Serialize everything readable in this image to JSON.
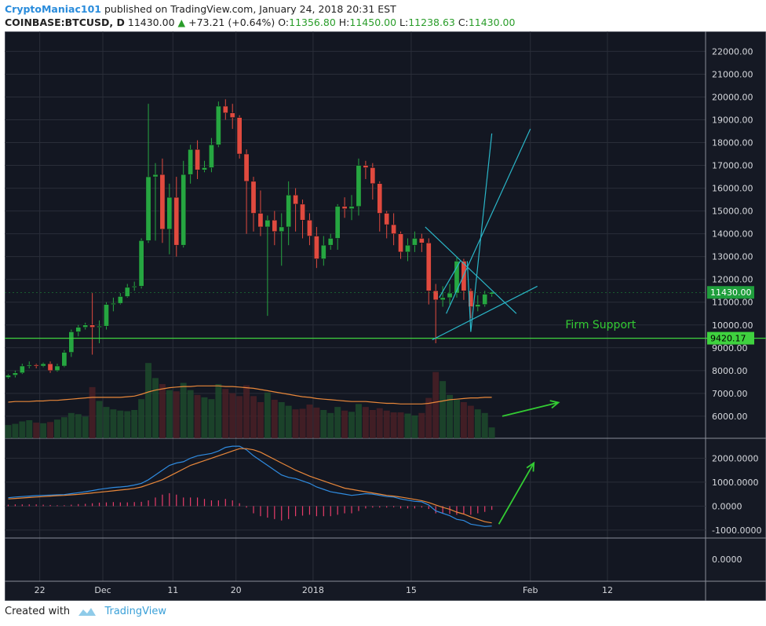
{
  "header": {
    "author": "CryptoManiac101",
    "published_text": " published on TradingView.com, January 24, 2018 20:31 EST",
    "symbol": "COINBASE:BTCUSD, D",
    "last": "11430.00",
    "change": "+73.21 (+0.64%)",
    "open_label": "O:",
    "open": "11356.80",
    "high_label": "H:",
    "high": "11450.00",
    "low_label": "L:",
    "low": "11238.63",
    "close_label": "C:",
    "close": "11430.00"
  },
  "footer": {
    "created_with": "Created with",
    "brand": "TradingView"
  },
  "colors": {
    "background": "#131722",
    "grid": "#2a2e39",
    "up": "#26a641",
    "down": "#e04a3f",
    "support_line": "#3fd23f",
    "annotation": "#33cc33",
    "trendline": "#2ab6c8",
    "volume_ma": "#e8873a",
    "macd": "#2f8be0",
    "signal": "#e8873a",
    "histogram": "#e83c6a"
  },
  "chart_data": {
    "type": "candlestick",
    "x_tick_labels": [
      "22",
      "Dec",
      "11",
      "20",
      "2018",
      "15",
      "Feb",
      "12"
    ],
    "y_ticks": [
      "22000.00",
      "21000.00",
      "20000.00",
      "19000.00",
      "18000.00",
      "17000.00",
      "16000.00",
      "15000.00",
      "14000.00",
      "13000.00",
      "12000.00",
      "11000.00",
      "10000.00",
      "9000.00",
      "8000.00",
      "7000.00",
      "6000.00"
    ],
    "ylim": [
      5100,
      22600
    ],
    "last_price_label": "11430.00",
    "support_price_label": "9420.17",
    "support_value": 9420.17,
    "annotation_text": "Firm Support",
    "candles": [
      {
        "o": 7700,
        "c": 7800,
        "h": 7850,
        "l": 7650
      },
      {
        "o": 7800,
        "c": 7900,
        "h": 8000,
        "l": 7700
      },
      {
        "o": 7900,
        "c": 8200,
        "h": 8300,
        "l": 7850
      },
      {
        "o": 8200,
        "c": 8250,
        "h": 8400,
        "l": 8100
      },
      {
        "o": 8250,
        "c": 8200,
        "h": 8300,
        "l": 8100
      },
      {
        "o": 8200,
        "c": 8300,
        "h": 8350,
        "l": 8150
      },
      {
        "o": 8300,
        "c": 8000,
        "h": 8400,
        "l": 7900
      },
      {
        "o": 8000,
        "c": 8200,
        "h": 8300,
        "l": 7950
      },
      {
        "o": 8200,
        "c": 8800,
        "h": 8900,
        "l": 8150
      },
      {
        "o": 8800,
        "c": 9700,
        "h": 9800,
        "l": 8600
      },
      {
        "o": 9700,
        "c": 9900,
        "h": 10000,
        "l": 9500
      },
      {
        "o": 9900,
        "c": 10000,
        "h": 10100,
        "l": 9800
      },
      {
        "o": 10000,
        "c": 9900,
        "h": 11400,
        "l": 8700
      },
      {
        "o": 9900,
        "c": 9950,
        "h": 10200,
        "l": 9200
      },
      {
        "o": 9950,
        "c": 10900,
        "h": 11000,
        "l": 9800
      },
      {
        "o": 10900,
        "c": 10950,
        "h": 11200,
        "l": 10600
      },
      {
        "o": 10950,
        "c": 11250,
        "h": 11400,
        "l": 10900
      },
      {
        "o": 11250,
        "c": 11650,
        "h": 11800,
        "l": 11200
      },
      {
        "o": 11650,
        "c": 11700,
        "h": 11900,
        "l": 11500
      },
      {
        "o": 11700,
        "c": 13700,
        "h": 13800,
        "l": 11600
      },
      {
        "o": 13700,
        "c": 16500,
        "h": 19700,
        "l": 13600
      },
      {
        "o": 16500,
        "c": 16600,
        "h": 17100,
        "l": 13700
      },
      {
        "o": 16600,
        "c": 14200,
        "h": 17300,
        "l": 13600
      },
      {
        "o": 14200,
        "c": 15600,
        "h": 16200,
        "l": 13100
      },
      {
        "o": 15600,
        "c": 13500,
        "h": 16500,
        "l": 13000
      },
      {
        "o": 13500,
        "c": 16600,
        "h": 17200,
        "l": 13400
      },
      {
        "o": 16600,
        "c": 17700,
        "h": 17900,
        "l": 16200
      },
      {
        "o": 17700,
        "c": 16800,
        "h": 18100,
        "l": 16400
      },
      {
        "o": 16800,
        "c": 16900,
        "h": 17200,
        "l": 16700
      },
      {
        "o": 16900,
        "c": 17900,
        "h": 18200,
        "l": 16700
      },
      {
        "o": 17900,
        "c": 19600,
        "h": 19800,
        "l": 17800
      },
      {
        "o": 19600,
        "c": 19300,
        "h": 19900,
        "l": 19000
      },
      {
        "o": 19300,
        "c": 19100,
        "h": 19700,
        "l": 18600
      },
      {
        "o": 19100,
        "c": 17500,
        "h": 19200,
        "l": 17300
      },
      {
        "o": 17500,
        "c": 16300,
        "h": 17700,
        "l": 14000
      },
      {
        "o": 16300,
        "c": 14900,
        "h": 16500,
        "l": 14100
      },
      {
        "o": 14900,
        "c": 14300,
        "h": 15900,
        "l": 13900
      },
      {
        "o": 14300,
        "c": 14600,
        "h": 14800,
        "l": 10400
      },
      {
        "o": 14600,
        "c": 14100,
        "h": 15000,
        "l": 13500
      },
      {
        "o": 14100,
        "c": 14300,
        "h": 14900,
        "l": 12600
      },
      {
        "o": 14300,
        "c": 15700,
        "h": 16300,
        "l": 13500
      },
      {
        "o": 15700,
        "c": 15300,
        "h": 16000,
        "l": 14100
      },
      {
        "o": 15300,
        "c": 14600,
        "h": 15500,
        "l": 13800
      },
      {
        "o": 14600,
        "c": 13900,
        "h": 14900,
        "l": 13500
      },
      {
        "o": 13900,
        "c": 12900,
        "h": 14300,
        "l": 12500
      },
      {
        "o": 12900,
        "c": 13500,
        "h": 13900,
        "l": 12600
      },
      {
        "o": 13500,
        "c": 13800,
        "h": 14000,
        "l": 13300
      },
      {
        "o": 13800,
        "c": 15200,
        "h": 15300,
        "l": 13300
      },
      {
        "o": 15200,
        "c": 15100,
        "h": 15600,
        "l": 14700
      },
      {
        "o": 15100,
        "c": 15200,
        "h": 15700,
        "l": 14600
      },
      {
        "o": 15200,
        "c": 17000,
        "h": 17300,
        "l": 14800
      },
      {
        "o": 17000,
        "c": 16900,
        "h": 17200,
        "l": 16400
      },
      {
        "o": 16900,
        "c": 16200,
        "h": 17100,
        "l": 15500
      },
      {
        "o": 16200,
        "c": 14900,
        "h": 16300,
        "l": 14100
      },
      {
        "o": 14900,
        "c": 14400,
        "h": 15000,
        "l": 13800
      },
      {
        "o": 14400,
        "c": 14000,
        "h": 14900,
        "l": 13500
      },
      {
        "o": 14000,
        "c": 13200,
        "h": 14100,
        "l": 12900
      },
      {
        "o": 13200,
        "c": 13500,
        "h": 13800,
        "l": 12800
      },
      {
        "o": 13500,
        "c": 13800,
        "h": 14100,
        "l": 13200
      },
      {
        "o": 13800,
        "c": 13600,
        "h": 14000,
        "l": 13200
      },
      {
        "o": 13600,
        "c": 11500,
        "h": 13800,
        "l": 10900
      },
      {
        "o": 11500,
        "c": 11100,
        "h": 11800,
        "l": 9200
      },
      {
        "o": 11100,
        "c": 11200,
        "h": 11700,
        "l": 10800
      },
      {
        "o": 11200,
        "c": 11400,
        "h": 11800,
        "l": 10900
      },
      {
        "o": 11400,
        "c": 12800,
        "h": 13000,
        "l": 11200
      },
      {
        "o": 12800,
        "c": 11500,
        "h": 12900,
        "l": 11100
      },
      {
        "o": 11500,
        "c": 10800,
        "h": 11600,
        "l": 10300
      },
      {
        "o": 10800,
        "c": 10900,
        "h": 11300,
        "l": 10600
      },
      {
        "o": 10900,
        "c": 11350,
        "h": 11500,
        "l": 10800
      },
      {
        "o": 11356.8,
        "c": 11430,
        "h": 11450,
        "l": 11238.63
      }
    ],
    "volume_axis_max": 18000,
    "volume": [
      2200,
      2400,
      2800,
      3000,
      2600,
      2500,
      2700,
      3100,
      3500,
      4200,
      4000,
      3600,
      8500,
      6200,
      5200,
      4800,
      4600,
      4500,
      4700,
      6500,
      12500,
      10000,
      9000,
      8000,
      7800,
      9200,
      8000,
      7200,
      6800,
      6500,
      9000,
      8200,
      7500,
      7000,
      8800,
      7000,
      6000,
      7600,
      6400,
      6000,
      5400,
      4800,
      4900,
      5600,
      5100,
      4700,
      4200,
      5200,
      4600,
      4400,
      5700,
      5200,
      4700,
      5000,
      4600,
      4300,
      4300,
      4100,
      3800,
      4200,
      6700,
      11000,
      9500,
      7200,
      6400,
      6000,
      5400,
      4800,
      4200,
      1800
    ],
    "volume_ma": [
      6000,
      6100,
      6100,
      6100,
      6200,
      6200,
      6300,
      6300,
      6400,
      6500,
      6600,
      6700,
      6800,
      6800,
      6800,
      6800,
      6800,
      6900,
      7000,
      7300,
      7700,
      8000,
      8200,
      8400,
      8500,
      8600,
      8600,
      8700,
      8700,
      8700,
      8700,
      8600,
      8600,
      8500,
      8400,
      8300,
      8100,
      7900,
      7700,
      7500,
      7300,
      7100,
      6900,
      6800,
      6600,
      6500,
      6400,
      6300,
      6200,
      6100,
      6100,
      6100,
      6000,
      5900,
      5800,
      5800,
      5700,
      5700,
      5700,
      5700,
      5800,
      6000,
      6200,
      6400,
      6500,
      6600,
      6700,
      6700,
      6800,
      6800
    ],
    "macd_axis_ticks": [
      "2000.0000",
      "1000.0000",
      "0.0000",
      "-1000.0000"
    ],
    "macd_ylim": [
      -1200,
      2700
    ],
    "macd": [
      350,
      380,
      400,
      420,
      440,
      450,
      460,
      470,
      480,
      520,
      560,
      600,
      650,
      700,
      740,
      780,
      800,
      830,
      880,
      950,
      1100,
      1300,
      1500,
      1700,
      1800,
      1850,
      2000,
      2100,
      2150,
      2200,
      2300,
      2450,
      2500,
      2500,
      2350,
      2100,
      1900,
      1700,
      1500,
      1300,
      1200,
      1150,
      1050,
      950,
      800,
      700,
      600,
      550,
      500,
      450,
      480,
      520,
      500,
      450,
      400,
      380,
      300,
      250,
      200,
      180,
      50,
      -200,
      -300,
      -400,
      -550,
      -600,
      -750,
      -800,
      -850,
      -830
    ],
    "macd_signal": [
      300,
      320,
      340,
      360,
      380,
      400,
      420,
      440,
      450,
      470,
      490,
      520,
      550,
      580,
      610,
      640,
      670,
      700,
      740,
      800,
      900,
      1000,
      1100,
      1250,
      1400,
      1550,
      1700,
      1800,
      1900,
      2000,
      2100,
      2200,
      2300,
      2400,
      2400,
      2350,
      2250,
      2100,
      1950,
      1800,
      1650,
      1500,
      1380,
      1250,
      1150,
      1050,
      950,
      850,
      750,
      700,
      650,
      600,
      550,
      500,
      450,
      420,
      380,
      330,
      280,
      230,
      150,
      50,
      -50,
      -130,
      -250,
      -330,
      -450,
      -550,
      -650,
      -700
    ],
    "xmax": 100,
    "trendlines": [
      {
        "x1": 60,
        "y1": 14300,
        "x2": 73,
        "y2": 10500
      },
      {
        "x1": 61,
        "y1": 9350,
        "x2": 76,
        "y2": 11700
      },
      {
        "x1": 62,
        "y1": 11200,
        "x2": 65,
        "y2": 12800
      },
      {
        "x1": 63,
        "y1": 10500,
        "x2": 75,
        "y2": 18600
      },
      {
        "x1": 66,
        "y1": 12800,
        "x2": 66.5,
        "y2": 9700
      },
      {
        "x1": 66.5,
        "y1": 9700,
        "x2": 69.5,
        "y2": 18400
      }
    ],
    "arrows": [
      {
        "x1": 71,
        "y1": 6000,
        "x2": 79,
        "y2": 6600
      }
    ],
    "macd_arrows": [
      {
        "x1": 70.5,
        "y1": -750,
        "x2": 75.5,
        "y2": 1800
      }
    ],
    "support_label_x": 80
  }
}
